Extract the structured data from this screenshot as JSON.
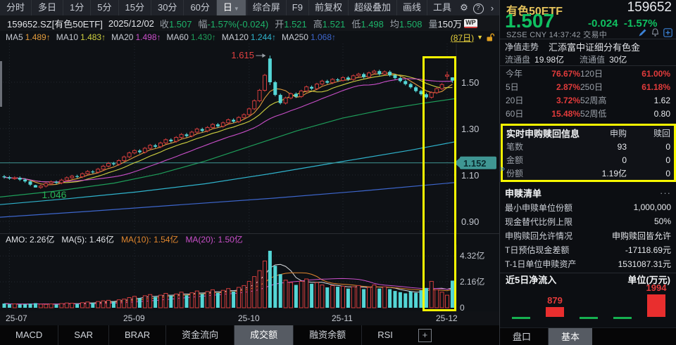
{
  "colors": {
    "up_red": "#d23c3c",
    "down_cyan": "#54d6d6",
    "quote_green": "#1db36a",
    "big_price_green": "#0fc060",
    "alert_yellow": "#f8f800",
    "title_gold": "#e6c35c",
    "perf_red": "#e23b3b",
    "nav_teal": "#3f9693"
  },
  "icons": {
    "gear": "⚙",
    "help": "?",
    "chevron_right": "›",
    "caret_down": "▼",
    "collapse": "»",
    "more": "···",
    "plus": "+"
  },
  "toolbar": {
    "period_tabs": [
      "分时",
      "多日",
      "1分",
      "5分",
      "15分",
      "30分",
      "60分",
      "日"
    ],
    "selected_period": "日",
    "right_items": [
      "综合屏",
      "F9",
      "前复权",
      "超级叠加",
      "画线",
      "工具"
    ]
  },
  "info_bar": {
    "code": "159652.SZ[有色50ETF]",
    "date": "2025/12/02",
    "fields": [
      {
        "label": "收",
        "value": "1.507"
      },
      {
        "label": "幅",
        "value": "-1.57%(-0.024)"
      },
      {
        "label": "开",
        "value": "1.521"
      },
      {
        "label": "高",
        "value": "1.521"
      },
      {
        "label": "低",
        "value": "1.498"
      },
      {
        "label": "均",
        "value": "1.508"
      }
    ],
    "volume_label": "量",
    "volume_value": "150万",
    "wp_badge": "WP"
  },
  "ma_bar": {
    "arrow": "↑",
    "items": [
      {
        "label": "MA5",
        "value": "1.489",
        "color": "#e09a3c"
      },
      {
        "label": "MA10",
        "value": "1.483",
        "color": "#cfd040"
      },
      {
        "label": "MA20",
        "value": "1.498",
        "color": "#c94fc9"
      },
      {
        "label": "MA60",
        "value": "1.430",
        "color": "#1e9e5a"
      },
      {
        "label": "MA120",
        "value": "1.244",
        "color": "#2fb3cc"
      },
      {
        "label": "MA250",
        "value": "1.068",
        "color": "#3d66cc"
      }
    ],
    "days_label": "(87日)"
  },
  "volume_header": {
    "segments": [
      {
        "text": "AMO: 2.26亿",
        "color": "#e2e4e8"
      },
      {
        "text": "MA(5): 1.46亿",
        "color": "#e2e4e8"
      },
      {
        "text": "MA(10): 1.54亿",
        "color": "#e0862e"
      },
      {
        "text": "MA(20): 1.50亿",
        "color": "#c94fc9"
      }
    ]
  },
  "bottom_tabs": {
    "items": [
      "MACD",
      "SAR",
      "BRAR",
      "资金流向",
      "成交额",
      "融资余额",
      "RSI"
    ],
    "selected": "成交额"
  },
  "chart_data": {
    "price": {
      "type": "candlestick",
      "period_days": 87,
      "closes": [
        1.09,
        1.085,
        1.088,
        1.08,
        1.072,
        1.058,
        1.046,
        1.052,
        1.063,
        1.07,
        1.066,
        1.078,
        1.088,
        1.095,
        1.092,
        1.105,
        1.115,
        1.112,
        1.125,
        1.138,
        1.15,
        1.146,
        1.162,
        1.178,
        1.195,
        1.205,
        1.198,
        1.215,
        1.228,
        1.222,
        1.238,
        1.252,
        1.245,
        1.262,
        1.275,
        1.268,
        1.285,
        1.298,
        1.29,
        1.305,
        1.318,
        1.31,
        1.325,
        1.338,
        1.33,
        1.348,
        1.36,
        1.385,
        1.42,
        1.465,
        1.53,
        1.5,
        1.445,
        1.41,
        1.432,
        1.45,
        1.438,
        1.462,
        1.48,
        1.472,
        1.492,
        1.505,
        1.498,
        1.512,
        1.508,
        1.52,
        1.512,
        1.528,
        1.535,
        1.522,
        1.54,
        1.548,
        1.535,
        1.545,
        1.53,
        1.518,
        1.505,
        1.492,
        1.478,
        1.462,
        1.448,
        1.435,
        1.455,
        1.472,
        1.49,
        1.531,
        1.507
      ],
      "overrides": {
        "6": [
          1.056,
          1.058,
          1.046,
          1.046
        ],
        "51": [
          1.602,
          1.615,
          1.488,
          1.5
        ],
        "85": [
          1.526,
          1.546,
          1.512,
          1.531
        ],
        "86": [
          1.521,
          1.521,
          1.498,
          1.507
        ]
      },
      "y_ticks": [
        "1.50",
        "1.30",
        "1.10",
        "0.90"
      ],
      "x_ticks": [
        {
          "label": "25-07",
          "index": 1
        },
        {
          "label": "25-09",
          "index": 25
        },
        {
          "label": "25-10",
          "index": 47
        },
        {
          "label": "25-11",
          "index": 65
        },
        {
          "label": "25-12",
          "index": 85
        }
      ],
      "short_mas": [
        {
          "window": 5,
          "color": "#e09a3c"
        },
        {
          "window": 10,
          "color": "#cfd040"
        },
        {
          "window": 20,
          "color": "#c94fc9"
        }
      ],
      "long_mas": [
        {
          "name": "MA60",
          "color": "#1e9e5a",
          "points": [
            [
              0,
              1.005
            ],
            [
              0.12,
              1.03
            ],
            [
              0.25,
              1.065
            ],
            [
              0.35,
              1.105
            ],
            [
              0.45,
              1.16
            ],
            [
              0.55,
              1.225
            ],
            [
              0.65,
              1.29
            ],
            [
              0.75,
              1.345
            ],
            [
              0.85,
              1.385
            ],
            [
              0.93,
              1.41
            ],
            [
              1,
              1.43
            ]
          ]
        },
        {
          "name": "MA120",
          "color": "#2fb3cc",
          "points": [
            [
              0,
              0.972
            ],
            [
              0.15,
              0.998
            ],
            [
              0.3,
              1.027
            ],
            [
              0.45,
              1.062
            ],
            [
              0.6,
              1.108
            ],
            [
              0.75,
              1.158
            ],
            [
              0.9,
              1.207
            ],
            [
              1,
              1.244
            ]
          ]
        },
        {
          "name": "MA250",
          "color": "#3d66cc",
          "points": [
            [
              0,
              0.918
            ],
            [
              0.2,
              0.944
            ],
            [
              0.4,
              0.972
            ],
            [
              0.6,
              1.0
            ],
            [
              0.8,
              1.032
            ],
            [
              1,
              1.068
            ]
          ]
        }
      ],
      "nav_marker": {
        "price": 1.152,
        "label": "1.152"
      },
      "annotations": {
        "peak": {
          "index": 51,
          "label": "1.615"
        },
        "low": {
          "index": 6,
          "label": "1.046"
        }
      }
    },
    "volume": {
      "type": "bar",
      "unit": "亿",
      "values": [
        0.35,
        0.3,
        0.32,
        0.28,
        0.3,
        0.34,
        0.38,
        0.3,
        0.28,
        0.32,
        0.27,
        0.35,
        0.4,
        0.38,
        0.33,
        0.42,
        0.48,
        0.4,
        0.52,
        0.58,
        0.62,
        0.5,
        0.66,
        0.72,
        0.85,
        0.95,
        0.8,
        1.0,
        1.1,
        0.9,
        1.05,
        1.2,
        1.0,
        1.15,
        1.3,
        1.05,
        1.25,
        1.4,
        1.15,
        1.35,
        1.5,
        1.25,
        1.45,
        1.6,
        1.35,
        1.7,
        1.85,
        2.2,
        2.6,
        3.1,
        3.9,
        4.75,
        3.5,
        2.8,
        2.3,
        2.1,
        1.9,
        2.2,
        2.4,
        2.0,
        2.1,
        1.9,
        1.7,
        1.85,
        1.75,
        1.8,
        1.6,
        1.75,
        1.85,
        1.55,
        1.7,
        1.9,
        1.6,
        1.75,
        1.55,
        1.4,
        1.3,
        1.2,
        1.35,
        1.25,
        1.45,
        1.65,
        2.2,
        1.5,
        1.3,
        1.05,
        2.26
      ],
      "y_ticks": [
        {
          "value": 4.32,
          "label": "4.32亿"
        },
        {
          "value": 2.16,
          "label": "2.16亿"
        },
        {
          "value": 0,
          "label": "0"
        }
      ],
      "ma_lines": [
        {
          "window": 5,
          "color": "#d8dade"
        },
        {
          "window": 10,
          "color": "#e0862e"
        },
        {
          "window": 20,
          "color": "#c94fc9"
        }
      ]
    },
    "net_inflow": {
      "type": "bar",
      "unit": "万元",
      "values": [
        -150,
        879,
        -160,
        -60,
        1994
      ],
      "labels": [
        "",
        "879",
        "",
        "",
        "1994"
      ]
    }
  },
  "right_panel": {
    "name": "有色50ETF",
    "code": "159652",
    "price": "1.507",
    "change": "-0.024",
    "change_pct": "-1.57%",
    "status_line": "SZSE  CNY  14:37:42  交易中",
    "nav_label": "净值走势",
    "fund_name": "汇添富中证细分有色金",
    "float_shares_label": "流通盘",
    "float_shares": "19.98亿",
    "float_value_label": "流通值",
    "float_value": "30亿",
    "performance": [
      {
        "label": "今年",
        "value": "76.67%",
        "red": true
      },
      {
        "label": "120日",
        "value": "61.00%",
        "red": true
      },
      {
        "label": "5日",
        "value": "2.87%",
        "red": true
      },
      {
        "label": "250日",
        "value": "61.18%",
        "red": true
      },
      {
        "label": "20日",
        "value": "3.72%",
        "red": true
      },
      {
        "label": "52周高",
        "value": "1.62",
        "red": false
      },
      {
        "label": "60日",
        "value": "15.48%",
        "red": true
      },
      {
        "label": "52周低",
        "value": "0.80",
        "red": false
      }
    ],
    "realtime_box": {
      "title": "实时申购赎回信息",
      "col1": "申购",
      "col2": "赎回",
      "rows": [
        {
          "label": "笔数",
          "v1": "93",
          "v2": "0"
        },
        {
          "label": "金额",
          "v1": "0",
          "v2": "0"
        },
        {
          "label": "份额",
          "v1": "1.19亿",
          "v2": "0"
        }
      ]
    },
    "list_section": {
      "title": "申赎清单",
      "rows": [
        {
          "label": "最小申赎单位份额",
          "value": "1,000,000"
        },
        {
          "label": "现金替代比例上限",
          "value": "50%"
        },
        {
          "label": "申购赎回允许情况",
          "value": "申购赎回皆允许"
        },
        {
          "label": "T日预估现金差额",
          "value": "-17118.69元"
        },
        {
          "label": "T-1日单位申赎资产",
          "value": "1531087.31元"
        }
      ]
    },
    "net_inflow": {
      "title": "近5日净流入",
      "unit": "单位(万元)"
    },
    "tabs": {
      "items": [
        "盘口",
        "基本"
      ],
      "selected": "基本"
    }
  }
}
